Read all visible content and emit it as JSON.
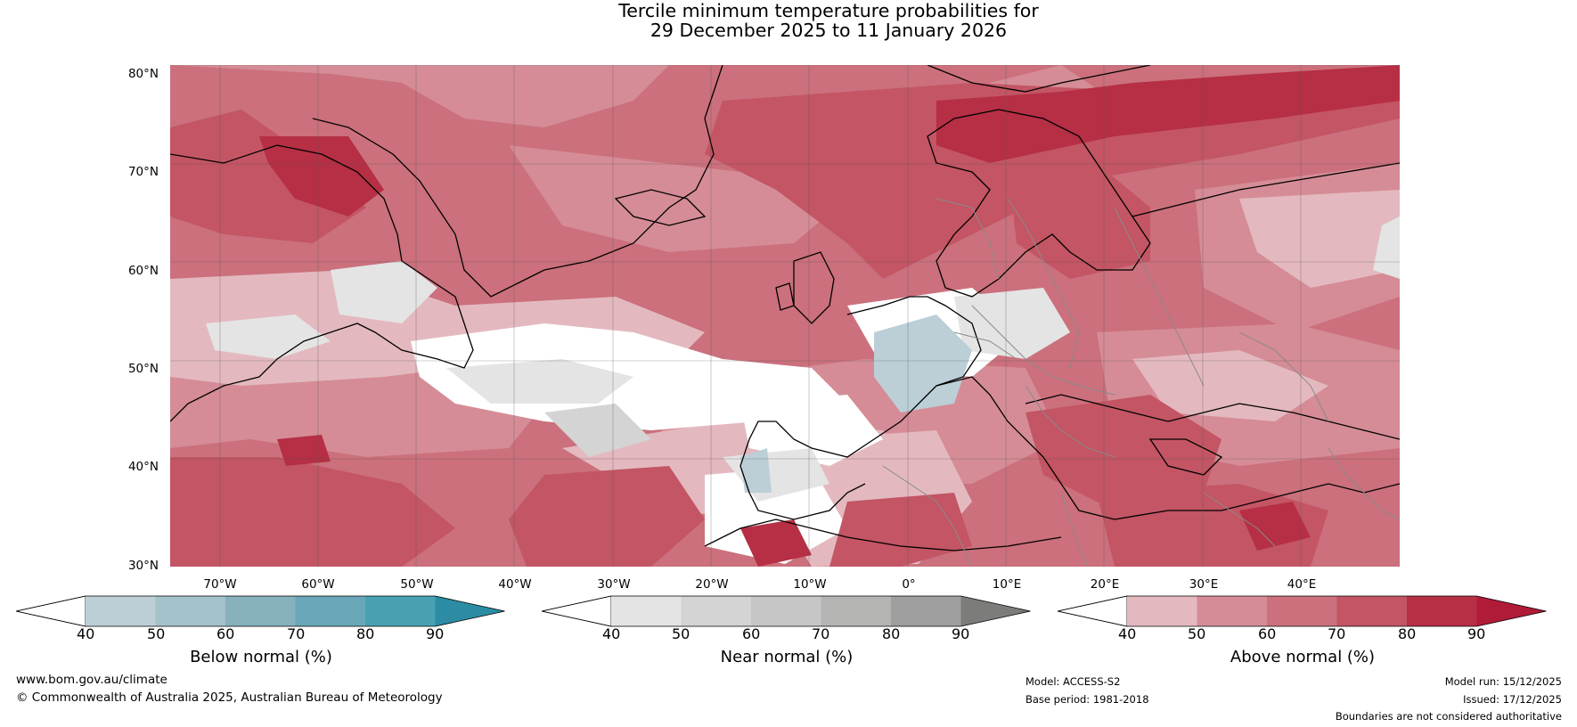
{
  "title": {
    "line1": "Tercile minimum temperature probabilities for",
    "line2": "29 December 2025 to 11 January 2026"
  },
  "latitude_labels": [
    "80°N",
    "70°N",
    "60°N",
    "50°N",
    "40°N",
    "30°N"
  ],
  "longitude_labels": [
    "70°W",
    "60°W",
    "50°W",
    "40°W",
    "30°W",
    "20°W",
    "10°W",
    "0°",
    "10°E",
    "20°E",
    "30°E",
    "40°E"
  ],
  "colorbars": [
    {
      "title": "Below normal (%)",
      "ticks": [
        "40",
        "50",
        "60",
        "70",
        "80",
        "90"
      ],
      "colors": [
        "#ffffff",
        "#bccfd7",
        "#a3c2ca",
        "#86b1bd",
        "#69a7b8",
        "#47a1b3",
        "#2b8ca3"
      ]
    },
    {
      "title": "Near normal (%)",
      "ticks": [
        "40",
        "50",
        "60",
        "70",
        "80",
        "90"
      ],
      "colors": [
        "#ffffff",
        "#e4e4e4",
        "#d4d4d4",
        "#c6c6c6",
        "#b5b5b4",
        "#a09f9f",
        "#7c7c7b"
      ]
    },
    {
      "title": "Above normal (%)",
      "ticks": [
        "40",
        "50",
        "60",
        "70",
        "80",
        "90"
      ],
      "colors": [
        "#ffffff",
        "#e3b9bf",
        "#d58c96",
        "#cb707c",
        "#c35564",
        "#b62f44",
        "#b01b38"
      ]
    }
  ],
  "footer": {
    "website": "www.bom.gov.au/climate",
    "copyright": "© Commonwealth of Australia 2025, Australian Bureau of Meteorology",
    "model": "Model: ACCESS-S2",
    "base_period": "Base period: 1981-2018",
    "model_run": "Model run: 15/12/2025",
    "issued": "Issued: 17/12/2025",
    "disclaimer": "Boundaries are not considered authoritative"
  }
}
